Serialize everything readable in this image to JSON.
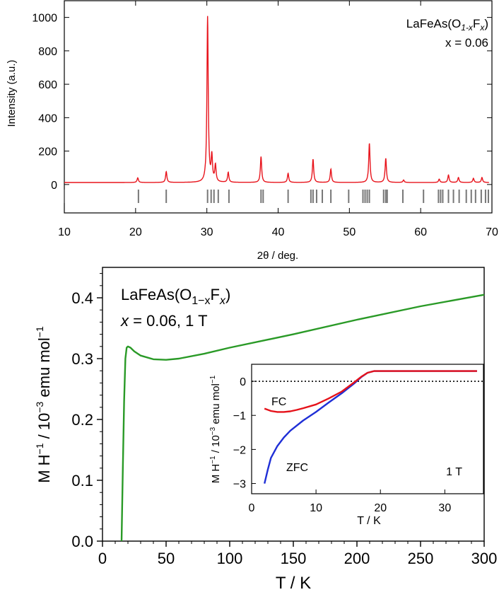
{
  "chart_data": [
    {
      "type": "line",
      "title": "",
      "annotation_line1": "LaFeAs(O",
      "annotation_sub1": "1-x",
      "annotation_mid": "F",
      "annotation_sub2": "x",
      "annotation_close": ")",
      "annotation_line2": "x = 0.06",
      "xlabel": "2θ / deg.",
      "ylabel": "Intensity (a.u.)",
      "xlim": [
        10,
        70
      ],
      "ylim": [
        -170,
        1100
      ],
      "xticks": [
        "10",
        "20",
        "30",
        "40",
        "50",
        "60",
        "70"
      ],
      "yticks": [
        "0",
        "200",
        "400",
        "600",
        "800",
        "1000"
      ],
      "grid": false,
      "baseline": 12,
      "line_color": "#e8141c",
      "marker_color": "#777777",
      "peaks": [
        {
          "x": 20.3,
          "h": 28
        },
        {
          "x": 24.3,
          "h": 65
        },
        {
          "x": 30.1,
          "h": 990
        },
        {
          "x": 30.7,
          "h": 150
        },
        {
          "x": 31.2,
          "h": 100
        },
        {
          "x": 33.0,
          "h": 60
        },
        {
          "x": 37.6,
          "h": 155
        },
        {
          "x": 41.4,
          "h": 55
        },
        {
          "x": 44.9,
          "h": 140
        },
        {
          "x": 47.4,
          "h": 80
        },
        {
          "x": 52.8,
          "h": 235
        },
        {
          "x": 55.1,
          "h": 145
        },
        {
          "x": 57.6,
          "h": 15
        },
        {
          "x": 62.6,
          "h": 20
        },
        {
          "x": 63.9,
          "h": 45
        },
        {
          "x": 65.3,
          "h": 30
        },
        {
          "x": 67.4,
          "h": 25
        },
        {
          "x": 68.6,
          "h": 30
        }
      ],
      "bragg_positions": [
        10.0,
        20.4,
        24.3,
        30.1,
        30.6,
        31.0,
        31.6,
        33.1,
        37.6,
        37.9,
        41.4,
        44.6,
        44.9,
        45.4,
        46.2,
        47.4,
        49.9,
        51.9,
        52.2,
        52.5,
        52.8,
        54.8,
        55.1,
        55.3,
        57.5,
        60.4,
        62.5,
        62.8,
        63.1,
        63.9,
        64.6,
        65.4,
        66.4,
        67.1,
        67.7,
        68.5,
        69.1,
        69.5
      ]
    },
    {
      "type": "line",
      "title": "",
      "annotation_line1": "LaFeAs(O",
      "annotation_sub1": "1−x",
      "annotation_mid": "F",
      "annotation_sub2": "x",
      "annotation_close": ")",
      "annotation_line2_prefix": "x",
      "annotation_line2": " = 0.06, 1 T",
      "xlabel": "T / K",
      "ylabel_main": "M H",
      "ylabel_exp1": "−1",
      "ylabel_mid": " / 10",
      "ylabel_exp2": "−3",
      "ylabel_end": " emu mol",
      "ylabel_exp3": "−1",
      "xlim": [
        0,
        300
      ],
      "ylim": [
        0,
        0.45
      ],
      "xticks": [
        "0",
        "50",
        "100",
        "150",
        "200",
        "250",
        "300"
      ],
      "yticks": [
        "0.0",
        "0.1",
        "0.2",
        "0.3",
        "0.4"
      ],
      "grid": false,
      "line_color": "#2a9a27",
      "series": [
        {
          "x": [
            15,
            16,
            17,
            18,
            19,
            20,
            22,
            25,
            30,
            40,
            50,
            60,
            80,
            100,
            150,
            200,
            250,
            300
          ],
          "y": [
            0.0,
            0.12,
            0.23,
            0.3,
            0.318,
            0.32,
            0.318,
            0.312,
            0.305,
            0.299,
            0.298,
            0.3,
            0.308,
            0.318,
            0.34,
            0.364,
            0.386,
            0.405
          ]
        }
      ]
    },
    {
      "type": "line",
      "title": "",
      "xlabel": "T / K",
      "ylabel_main": "M H",
      "ylabel_exp1": "−1",
      "ylabel_mid": " / 10",
      "ylabel_exp2": "−3",
      "ylabel_end": " emu mol",
      "ylabel_exp3": "−1",
      "xlim": [
        0,
        36
      ],
      "ylim": [
        -3.3,
        0.5
      ],
      "xticks": [
        "0",
        "10",
        "20",
        "30"
      ],
      "yticks": [
        "0",
        "−1",
        "−2",
        "−3"
      ],
      "zero_line": true,
      "grid": false,
      "annotation_field": "1 T",
      "series": [
        {
          "name": "ZFC",
          "color": "#1f2fd6",
          "x": [
            2,
            2.5,
            3,
            4,
            5,
            6,
            8,
            10,
            12,
            14,
            16,
            17,
            18,
            19,
            20,
            25,
            30,
            35
          ],
          "y": [
            -3.0,
            -2.6,
            -2.25,
            -1.9,
            -1.65,
            -1.45,
            -1.15,
            -0.9,
            -0.62,
            -0.35,
            -0.05,
            0.12,
            0.25,
            0.3,
            0.3,
            0.3,
            0.3,
            0.3
          ]
        },
        {
          "name": "FC",
          "color": "#e5121a",
          "x": [
            2,
            3,
            4,
            5,
            6,
            7,
            8,
            10,
            12,
            14,
            16,
            17,
            18,
            19,
            20,
            25,
            30,
            35
          ],
          "y": [
            -0.8,
            -0.87,
            -0.9,
            -0.9,
            -0.88,
            -0.84,
            -0.79,
            -0.68,
            -0.5,
            -0.3,
            -0.02,
            0.13,
            0.25,
            0.3,
            0.3,
            0.3,
            0.3,
            0.3
          ]
        }
      ]
    }
  ]
}
